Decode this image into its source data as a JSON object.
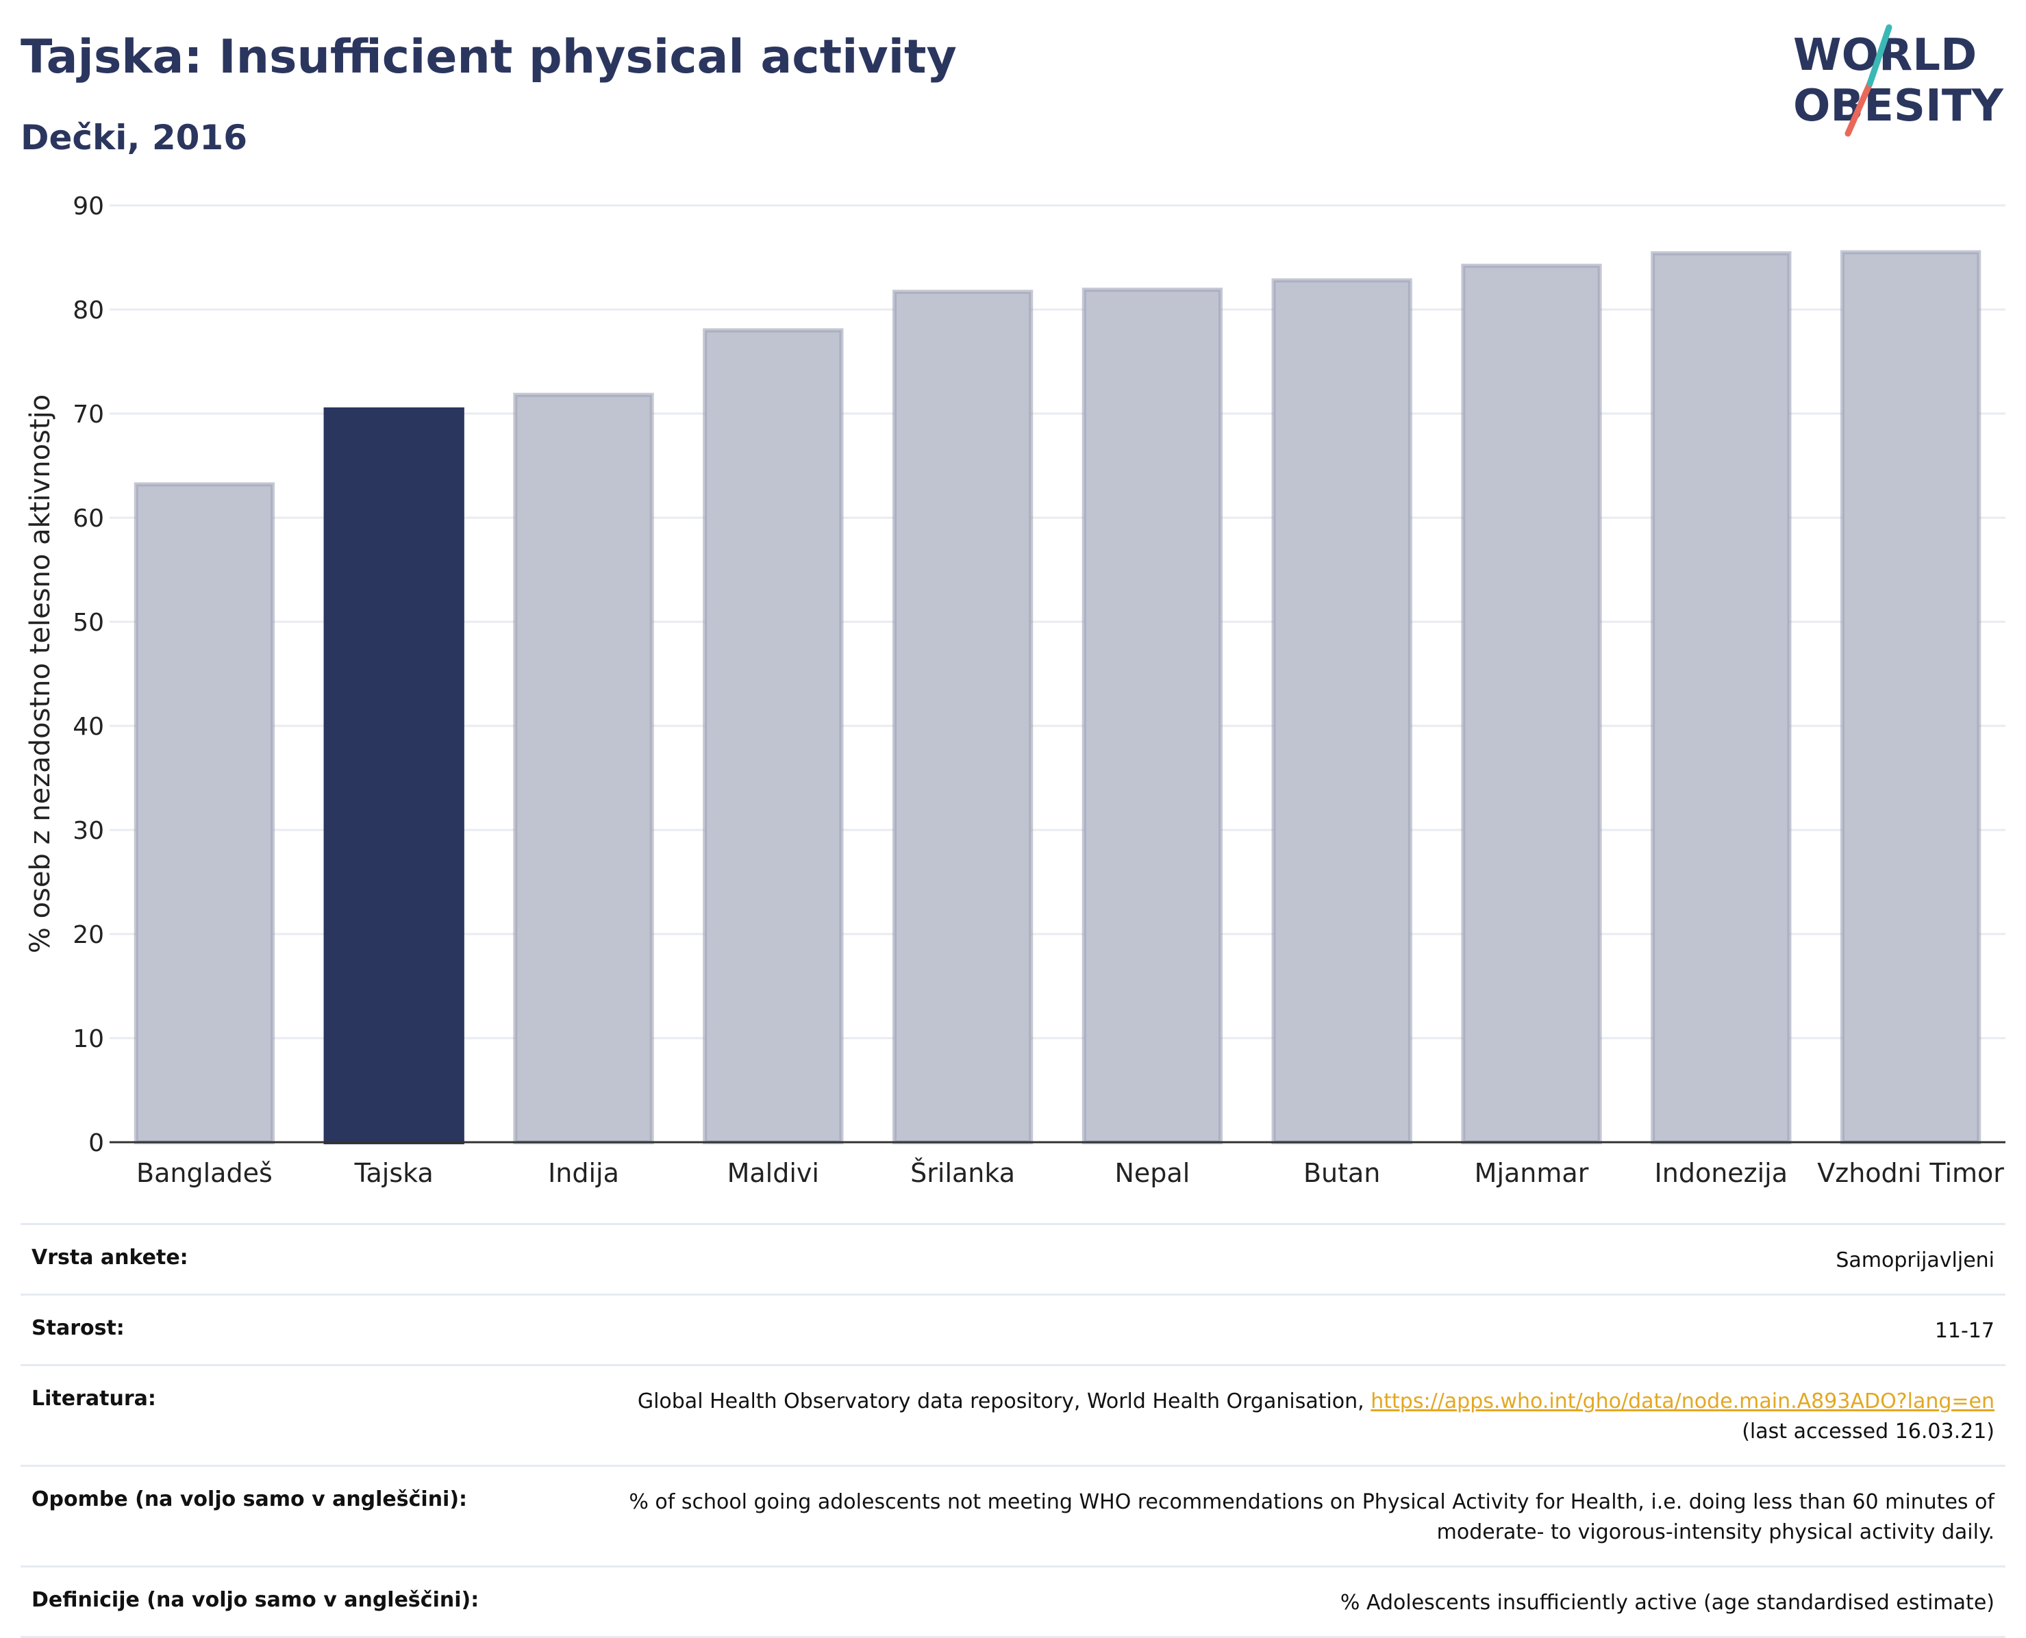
{
  "header": {
    "title": "Tajska: Insufficient physical activity",
    "subtitle": "Dečki, 2016"
  },
  "logo": {
    "line1": "WORLD",
    "line2": "OBESITY"
  },
  "colors": {
    "highlight": "#2b365f",
    "bar": "#c0c3d0",
    "bar_border": "#9ea3b8",
    "accent": "#e3a722"
  },
  "chart_data": {
    "type": "bar",
    "categories": [
      "Bangladeš",
      "Tajska",
      "Indija",
      "Maldivi",
      "Šrilanka",
      "Nepal",
      "Butan",
      "Mjanmar",
      "Indonezija",
      "Vzhodni Timor"
    ],
    "values": [
      63.2,
      70.4,
      71.8,
      78.0,
      81.7,
      81.9,
      82.8,
      84.2,
      85.4,
      85.5
    ],
    "highlight": "Tajska",
    "ylabel": "% oseb z nezadostno telesno aktivnostjo",
    "ylim": [
      0,
      90
    ],
    "yticks": [
      0,
      10,
      20,
      30,
      40,
      50,
      60,
      70,
      80,
      90
    ],
    "grid": true
  },
  "info": {
    "survey_label": "Vrsta ankete:",
    "survey_value": "Samoprijavljeni",
    "age_label": "Starost:",
    "age_value": "11-17",
    "ref_label": "Literatura:",
    "ref_text": "Global Health Observatory data repository, World Health Organisation,",
    "ref_link": "https://apps.who.int/gho/data/node.main.A893ADO?lang=en",
    "ref_accessed": "(last accessed 16.03.21)",
    "notes_label": "Opombe (na voljo samo v angleščini):",
    "notes_value": "% of school going adolescents not meeting WHO recommendations on Physical Activity for Health, i.e. doing less than 60 minutes of moderate- to vigorous-intensity physical activity daily.",
    "def_label": "Definicije (na voljo samo v angleščini):",
    "def_value": "% Adolescents insufficiently active (age standardised estimate)"
  }
}
